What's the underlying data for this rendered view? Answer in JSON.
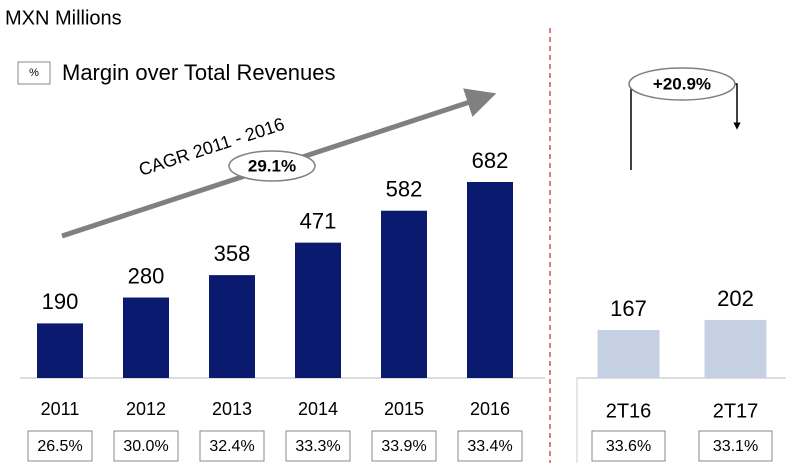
{
  "header": {
    "subtitle": "MXN Millions",
    "legend_symbol": "%",
    "legend_label": "Margin over Total Revenues"
  },
  "chart_data": [
    {
      "type": "bar",
      "categories": [
        "2011",
        "2012",
        "2013",
        "2014",
        "2015",
        "2016"
      ],
      "values": [
        190,
        280,
        358,
        471,
        582,
        682
      ],
      "color": "#0a1a6e",
      "margins": {
        "values": [
          26.5,
          30.0,
          32.4,
          33.3,
          33.9,
          33.4
        ],
        "value_labels": [
          "26.5%",
          "30.0%",
          "32.4%",
          "33.3%",
          "33.9%",
          "33.4%"
        ]
      },
      "annotation": {
        "label": "CAGR 2011 - 2016",
        "value_label": "29.1%"
      }
    },
    {
      "type": "bar",
      "categories": [
        "2T16",
        "2T17"
      ],
      "values": [
        167,
        202
      ],
      "color": "#c5d0e2",
      "margins": {
        "values": [
          33.6,
          33.1
        ],
        "value_labels": [
          "33.6%",
          "33.1%"
        ]
      },
      "annotation": {
        "value_label": "+20.9%"
      }
    }
  ]
}
